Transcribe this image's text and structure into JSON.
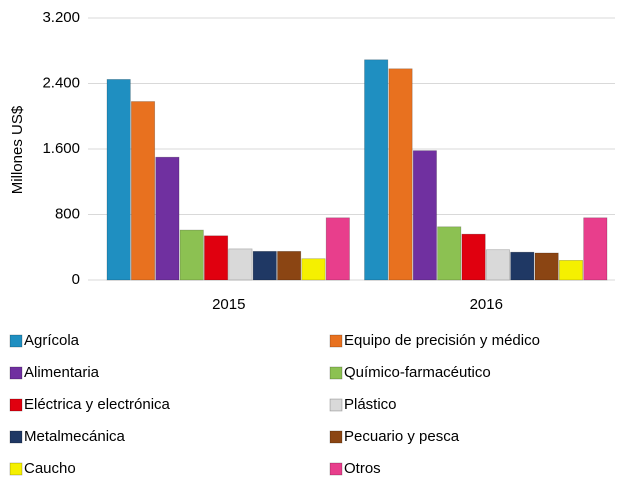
{
  "chart_data": {
    "type": "bar",
    "y_label": "Millones US$",
    "categories": [
      "2015",
      "2016"
    ],
    "series": [
      {
        "name": "Agrícola",
        "color": "#1f8fc1",
        "values": [
          2450,
          2690
        ]
      },
      {
        "name": "Equipo de precisión y médico",
        "color": "#e8711f",
        "values": [
          2180,
          2580
        ]
      },
      {
        "name": "Alimentaria",
        "color": "#7030a0",
        "values": [
          1500,
          1580
        ]
      },
      {
        "name": "Químico-farmacéutico",
        "color": "#8cc152",
        "values": [
          610,
          650
        ]
      },
      {
        "name": "Eléctrica y electrónica",
        "color": "#e0000f",
        "values": [
          540,
          560
        ]
      },
      {
        "name": "Plástico",
        "color": "#d9d9d9",
        "values": [
          380,
          370
        ]
      },
      {
        "name": "Metalmecánica",
        "color": "#1f3864",
        "values": [
          350,
          340
        ]
      },
      {
        "name": "Pecuario y pesca",
        "color": "#8b4513",
        "values": [
          350,
          330
        ]
      },
      {
        "name": "Caucho",
        "color": "#f5f000",
        "values": [
          260,
          240
        ]
      },
      {
        "name": "Otros",
        "color": "#e83e8c",
        "values": [
          760,
          760
        ]
      }
    ],
    "ylim": [
      0,
      3200
    ],
    "yticks": [
      0,
      800,
      {
        "value": 1600,
        "label": "1.600"
      },
      {
        "value": 2400,
        "label": "2.400"
      },
      {
        "value": 3200,
        "label": "3.200"
      }
    ],
    "grid": true
  }
}
